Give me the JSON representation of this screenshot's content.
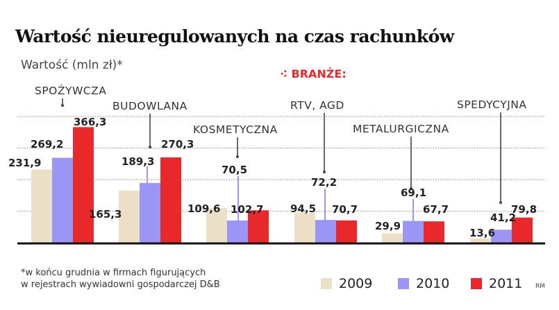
{
  "chart_data": {
    "type": "bar",
    "title": "Wartość nieuregulowanych na czas rachunków",
    "ylabel": "Wartość (mln zł)*",
    "legend_title": "BRANŻE:",
    "categories": [
      "SPOŻYWCZA",
      "BUDOWLANA",
      "KOSMETYCZNA",
      "RTV, AGD",
      "METALURGICZNA",
      "SPEDYCYJNA"
    ],
    "series": [
      {
        "name": "2009",
        "color": "#ecdfc8",
        "values": [
          231.9,
          165.3,
          109.6,
          94.5,
          29.9,
          13.6
        ],
        "labels": [
          "231,9",
          "165,3",
          "109,6",
          "94,5",
          "29,9",
          "13,6"
        ]
      },
      {
        "name": "2010",
        "color": "#9b95f5",
        "values": [
          269.2,
          189.3,
          70.5,
          72.2,
          69.1,
          41.2
        ],
        "labels": [
          "269,2",
          "189,3",
          "70,5",
          "72,2",
          "69,1",
          "41,2"
        ]
      },
      {
        "name": "2011",
        "color": "#e8282a",
        "values": [
          366.3,
          270.3,
          102.7,
          70.7,
          67.7,
          79.8
        ],
        "labels": [
          "366,3",
          "270,3",
          "102,7",
          "70,7",
          "67,7",
          "79,8"
        ]
      }
    ],
    "ylim": [
      0,
      400
    ],
    "gridlines": [
      100,
      200,
      300,
      400
    ],
    "grid": "dotted horizontal",
    "legend_position": "bottom-right",
    "footnote": [
      "*w końcu grudnia w firmach figurujących",
      "w rejestrach wywiadowni gospodarczej D&B"
    ],
    "credit": "RM"
  }
}
